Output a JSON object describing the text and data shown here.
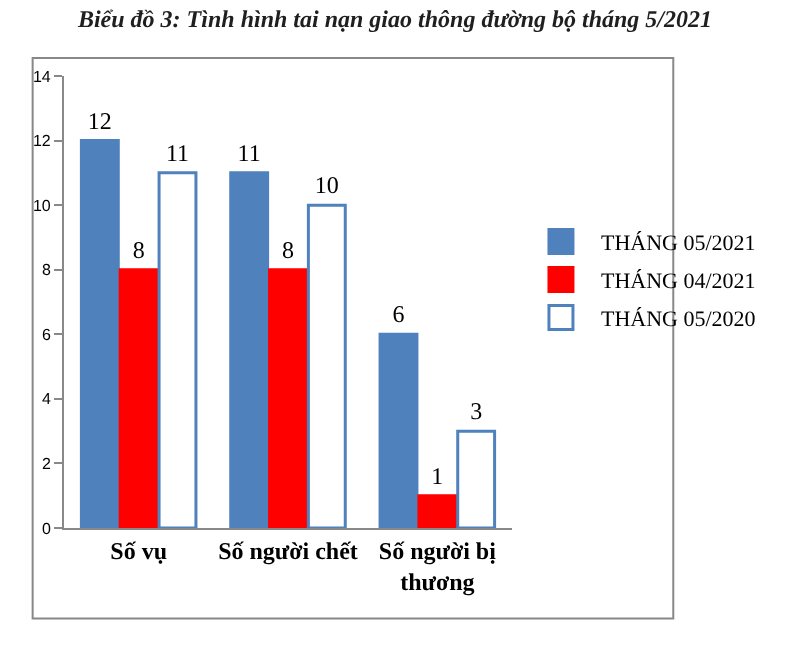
{
  "chart_data": {
    "type": "bar",
    "title": "Biểu đồ 3: Tình hình tai nạn giao thông đường bộ tháng 5/2021",
    "categories": [
      "Số vụ",
      "Số người chết",
      "Số người bị thương"
    ],
    "series": [
      {
        "name": "THÁNG 05/2021",
        "color": "#4f81bd",
        "values": [
          12,
          11,
          6
        ]
      },
      {
        "name": "THÁNG 04/2021",
        "color": "#ff0000",
        "values": [
          8,
          8,
          1
        ]
      },
      {
        "name": "THÁNG 05/2020",
        "color": "#4f81bd",
        "values": [
          11,
          10,
          3
        ]
      }
    ],
    "ylim": [
      0,
      14
    ],
    "yticks": [
      0,
      2,
      4,
      6,
      8,
      10,
      12,
      14
    ],
    "data_labels": true,
    "grid": false,
    "legend": "right"
  }
}
